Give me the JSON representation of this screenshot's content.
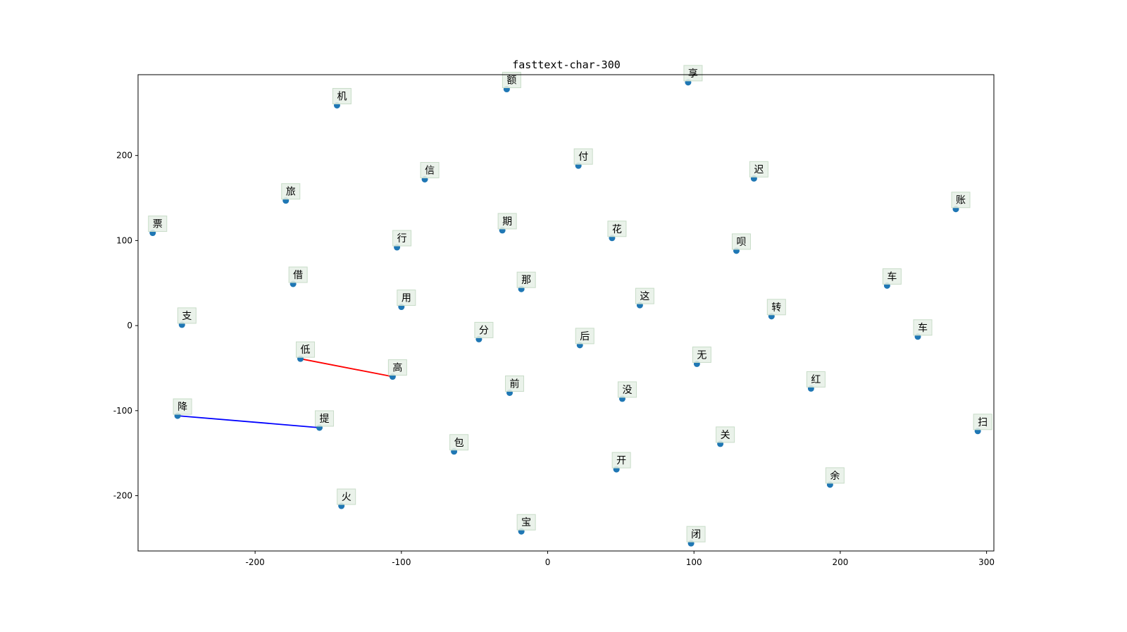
{
  "chart_data": {
    "type": "scatter",
    "title": "fasttext-char-300",
    "xlabel": "",
    "ylabel": "",
    "xlim": [
      -280,
      305
    ],
    "ylim": [
      -265,
      295
    ],
    "xticks": [
      -200,
      -100,
      0,
      100,
      200,
      300
    ],
    "yticks": [
      -200,
      -100,
      0,
      100,
      200
    ],
    "grid": false,
    "marker_color": "#1f77b4",
    "label_box_color": "#e6f0e6",
    "points": [
      {
        "label": "额",
        "x": -28,
        "y": 278
      },
      {
        "label": "享",
        "x": 96,
        "y": 286
      },
      {
        "label": "机",
        "x": -144,
        "y": 259
      },
      {
        "label": "付",
        "x": 21,
        "y": 188
      },
      {
        "label": "迟",
        "x": 141,
        "y": 173
      },
      {
        "label": "信",
        "x": -84,
        "y": 172
      },
      {
        "label": "旅",
        "x": -179,
        "y": 147
      },
      {
        "label": "账",
        "x": 279,
        "y": 137
      },
      {
        "label": "票",
        "x": -270,
        "y": 109
      },
      {
        "label": "期",
        "x": -31,
        "y": 112
      },
      {
        "label": "花",
        "x": 44,
        "y": 103
      },
      {
        "label": "行",
        "x": -103,
        "y": 92
      },
      {
        "label": "呗",
        "x": 129,
        "y": 88
      },
      {
        "label": "借",
        "x": -174,
        "y": 49
      },
      {
        "label": "车",
        "x": 232,
        "y": 47
      },
      {
        "label": "那",
        "x": -18,
        "y": 43
      },
      {
        "label": "这",
        "x": 63,
        "y": 24
      },
      {
        "label": "用",
        "x": -100,
        "y": 22
      },
      {
        "label": "转",
        "x": 153,
        "y": 11
      },
      {
        "label": "支",
        "x": -250,
        "y": 1
      },
      {
        "label": "分",
        "x": -47,
        "y": -16
      },
      {
        "label": "车",
        "x": 253,
        "y": -13
      },
      {
        "label": "后",
        "x": 22,
        "y": -23
      },
      {
        "label": "低",
        "x": -169,
        "y": -39
      },
      {
        "label": "无",
        "x": 102,
        "y": -45
      },
      {
        "label": "高",
        "x": -106,
        "y": -60
      },
      {
        "label": "红",
        "x": 180,
        "y": -74
      },
      {
        "label": "前",
        "x": -26,
        "y": -79
      },
      {
        "label": "没",
        "x": 51,
        "y": -86
      },
      {
        "label": "降",
        "x": -253,
        "y": -106
      },
      {
        "label": "提",
        "x": -156,
        "y": -120
      },
      {
        "label": "扫",
        "x": 294,
        "y": -124
      },
      {
        "label": "关",
        "x": 118,
        "y": -139
      },
      {
        "label": "包",
        "x": -64,
        "y": -148
      },
      {
        "label": "开",
        "x": 47,
        "y": -169
      },
      {
        "label": "余",
        "x": 193,
        "y": -187
      },
      {
        "label": "火",
        "x": -141,
        "y": -212
      },
      {
        "label": "宝",
        "x": -18,
        "y": -242
      },
      {
        "label": "闭",
        "x": 98,
        "y": -256
      }
    ],
    "segments": [
      {
        "from": "低",
        "to": "高",
        "color": "#ff0000"
      },
      {
        "from": "降",
        "to": "提",
        "color": "#0000ff"
      }
    ]
  }
}
